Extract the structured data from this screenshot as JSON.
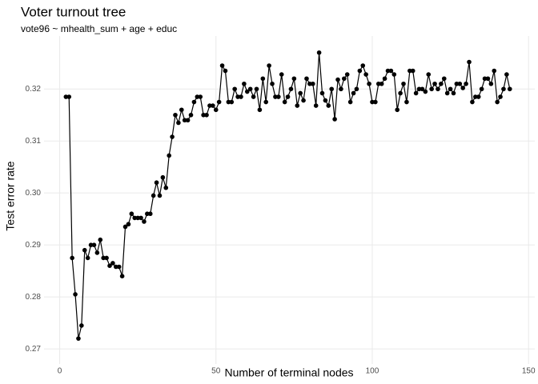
{
  "chart_data": {
    "type": "line",
    "title": "Voter turnout tree",
    "subtitle": "vote96 ~ mhealth_sum + age + educ",
    "x_label": "Number of terminal nodes",
    "y_label": "Test error rate",
    "x": [
      2,
      3,
      4,
      5,
      6,
      7,
      8,
      9,
      10,
      11,
      12,
      13,
      14,
      15,
      16,
      17,
      18,
      19,
      20,
      21,
      22,
      23,
      24,
      25,
      26,
      27,
      28,
      29,
      30,
      31,
      32,
      33,
      34,
      35,
      36,
      37,
      38,
      39,
      40,
      41,
      42,
      43,
      44,
      45,
      46,
      47,
      48,
      49,
      50,
      51,
      52,
      53,
      54,
      55,
      56,
      57,
      58,
      59,
      60,
      61,
      62,
      63,
      64,
      65,
      66,
      67,
      68,
      69,
      70,
      71,
      72,
      73,
      74,
      75,
      76,
      77,
      78,
      79,
      80,
      81,
      82,
      83,
      84,
      85,
      86,
      87,
      88,
      89,
      90,
      91,
      92,
      93,
      94,
      95,
      96,
      97,
      98,
      99,
      100,
      101,
      102,
      103,
      104,
      105,
      106,
      107,
      108,
      109,
      110,
      111,
      112,
      113,
      114,
      115,
      116,
      117,
      118,
      119,
      120,
      121,
      122,
      123,
      124,
      125,
      126,
      127,
      128,
      129,
      130,
      131,
      132,
      133,
      134,
      135,
      136,
      137,
      138,
      139,
      140,
      141,
      142,
      143,
      144
    ],
    "series": [
      {
        "name": "Test error rate",
        "color": "#000000",
        "values": [
          0.3185,
          0.3185,
          0.2875,
          0.2805,
          0.272,
          0.2745,
          0.289,
          0.2875,
          0.29,
          0.29,
          0.2885,
          0.291,
          0.2875,
          0.2875,
          0.286,
          0.2865,
          0.2858,
          0.2858,
          0.284,
          0.2935,
          0.294,
          0.296,
          0.2952,
          0.2952,
          0.2952,
          0.2945,
          0.296,
          0.296,
          0.2995,
          0.302,
          0.2995,
          0.303,
          0.301,
          0.3072,
          0.3108,
          0.315,
          0.3135,
          0.316,
          0.314,
          0.314,
          0.315,
          0.3175,
          0.3185,
          0.3185,
          0.315,
          0.315,
          0.3168,
          0.3168,
          0.316,
          0.3175,
          0.3245,
          0.3235,
          0.3175,
          0.3175,
          0.32,
          0.3185,
          0.3185,
          0.321,
          0.3195,
          0.32,
          0.3185,
          0.32,
          0.316,
          0.322,
          0.3175,
          0.3245,
          0.321,
          0.3185,
          0.3185,
          0.3228,
          0.3175,
          0.3185,
          0.32,
          0.322,
          0.3168,
          0.3192,
          0.3178,
          0.322,
          0.321,
          0.321,
          0.3168,
          0.327,
          0.3192,
          0.3178,
          0.3168,
          0.32,
          0.3142,
          0.3218,
          0.32,
          0.322,
          0.3228,
          0.3175,
          0.3192,
          0.32,
          0.3235,
          0.3245,
          0.3228,
          0.321,
          0.3175,
          0.3175,
          0.321,
          0.321,
          0.322,
          0.3235,
          0.3235,
          0.3228,
          0.316,
          0.3192,
          0.321,
          0.3175,
          0.3235,
          0.3235,
          0.3192,
          0.32,
          0.32,
          0.3195,
          0.3228,
          0.32,
          0.321,
          0.32,
          0.321,
          0.322,
          0.3192,
          0.32,
          0.3192,
          0.321,
          0.321,
          0.3202,
          0.321,
          0.3252,
          0.3175,
          0.3185,
          0.3185,
          0.32,
          0.322,
          0.322,
          0.321,
          0.3235,
          0.3175,
          0.3185,
          0.32,
          0.3228,
          0.32
        ]
      }
    ],
    "xlim": [
      -5,
      152
    ],
    "xticks": [
      0,
      50,
      100,
      150
    ],
    "ylim": [
      0.2671,
      0.3302
    ],
    "yticks": [
      0.27,
      0.28,
      0.29,
      {
        "value": 0.3,
        "label": "0.30"
      },
      0.31,
      0.32
    ],
    "grid": true
  }
}
